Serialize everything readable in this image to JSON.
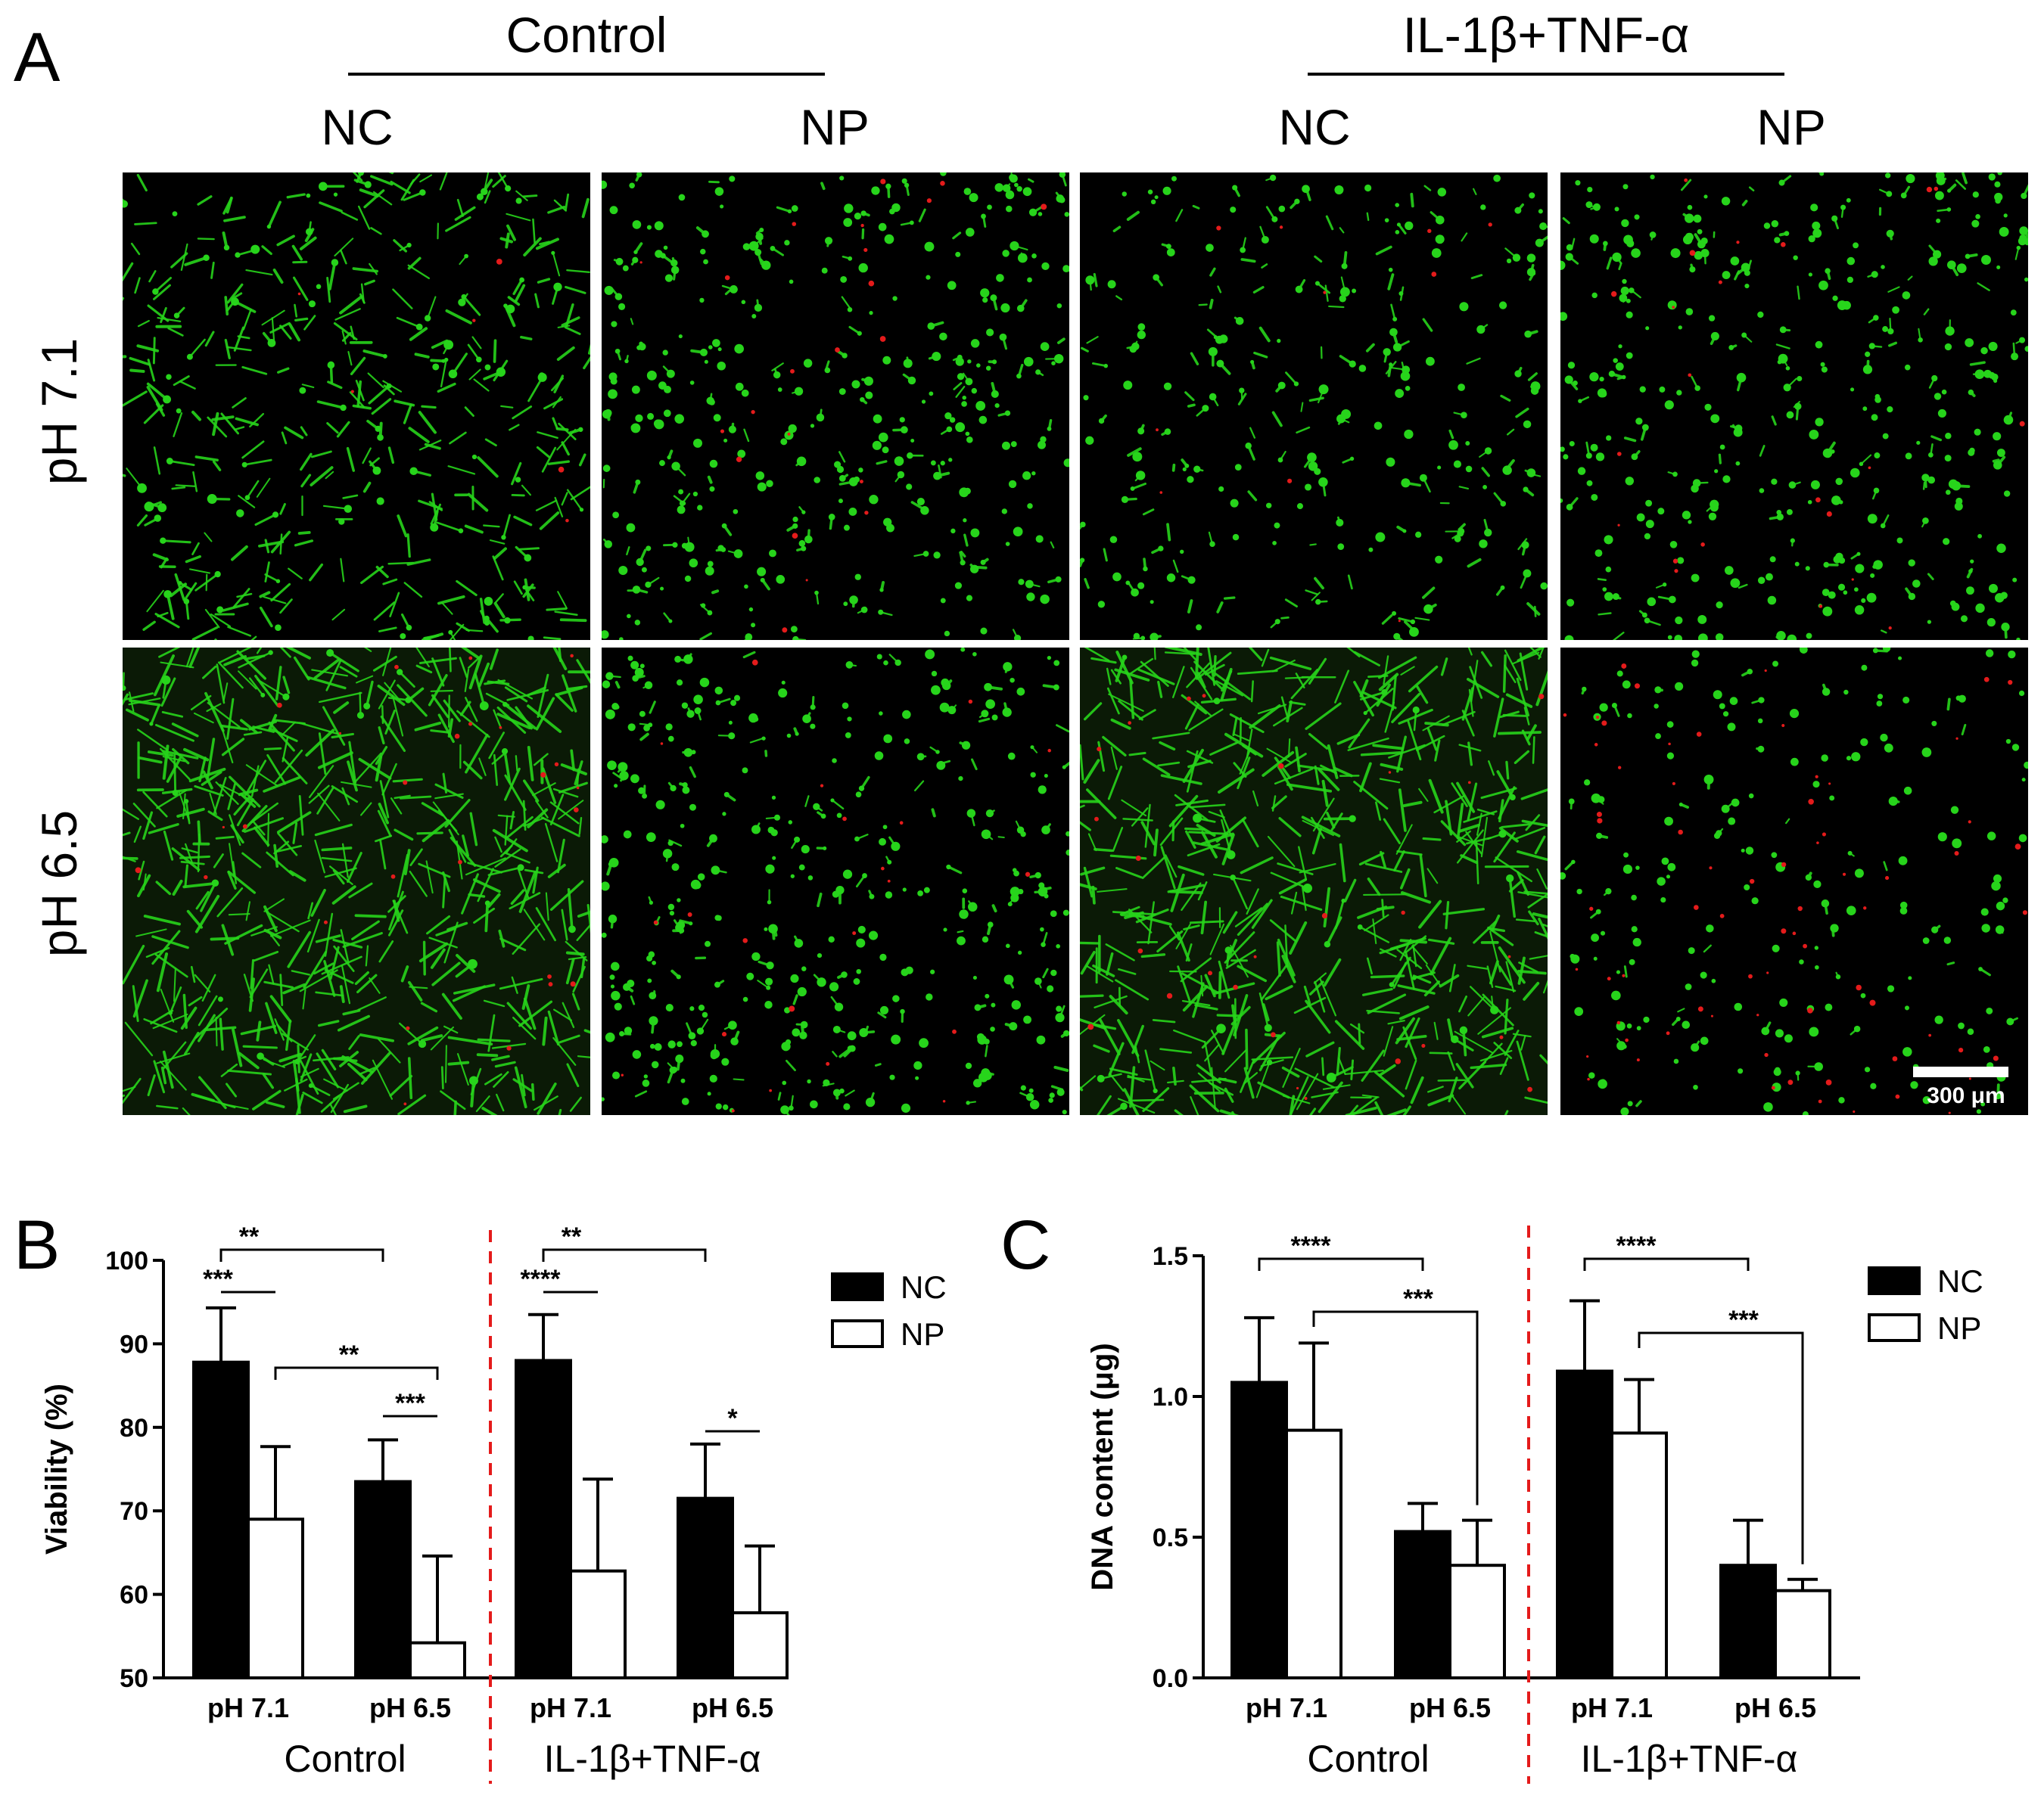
{
  "panel_a": {
    "letter": "A",
    "groups": [
      {
        "label": "Control",
        "cols": [
          "NC",
          "NP"
        ]
      },
      {
        "label": "IL-1β+TNF-α",
        "cols": [
          "NC",
          "NP"
        ]
      }
    ],
    "rows": [
      "pH 7.1",
      "pH 6.5"
    ],
    "scale_bar": "300 μm",
    "colors": {
      "live": "#27d41b",
      "dead": "#e41b1b",
      "background": "#000000"
    }
  },
  "panel_b": {
    "letter": "B",
    "legend": [
      "NC",
      "NP"
    ],
    "groups": [
      "Control",
      "IL-1β+TNF-α"
    ]
  },
  "panel_c": {
    "letter": "C",
    "legend": [
      "NC",
      "NP"
    ],
    "groups": [
      "Control",
      "IL-1β+TNF-α"
    ]
  },
  "chart_data": [
    {
      "type": "bar",
      "panel": "B",
      "ylabel": "Viability (%)",
      "ylim": [
        50,
        100
      ],
      "yticks": [
        50,
        60,
        70,
        80,
        90,
        100
      ],
      "categories": [
        "pH 7.1",
        "pH 6.5",
        "pH 7.1",
        "pH 6.5"
      ],
      "groups": [
        "Control",
        "IL-1β+TNF-α"
      ],
      "series": [
        {
          "name": "NC",
          "values": [
            87.8,
            73.5,
            88.0,
            71.5
          ],
          "errors": [
            6.5,
            5.0,
            5.5,
            6.5
          ]
        },
        {
          "name": "NP",
          "values": [
            69.0,
            54.2,
            62.8,
            57.8
          ],
          "errors": [
            8.7,
            10.4,
            11.0,
            8.0
          ]
        }
      ],
      "significance": [
        {
          "label": "***",
          "from": "Control pH 7.1 NC",
          "to": "Control pH 7.1 NP"
        },
        {
          "label": "**",
          "from": "Control pH 7.1 NC",
          "to": "Control pH 6.5 NC"
        },
        {
          "label": "**",
          "from": "Control pH 7.1 NP",
          "to": "Control pH 6.5 NP"
        },
        {
          "label": "***",
          "from": "Control pH 6.5 NC",
          "to": "Control pH 6.5 NP"
        },
        {
          "label": "****",
          "from": "IL-1β+TNF-α pH 7.1 NC",
          "to": "IL-1β+TNF-α pH 7.1 NP"
        },
        {
          "label": "**",
          "from": "IL-1β+TNF-α pH 7.1 NC",
          "to": "IL-1β+TNF-α pH 6.5 NC"
        },
        {
          "label": "*",
          "from": "IL-1β+TNF-α pH 6.5 NC",
          "to": "IL-1β+TNF-α pH 6.5 NP"
        }
      ],
      "legend_position": "right"
    },
    {
      "type": "bar",
      "panel": "C",
      "ylabel": "DNA content (μg)",
      "ylim": [
        0,
        1.5
      ],
      "yticks": [
        "0.0",
        "0.5",
        "1.0",
        "1.5"
      ],
      "categories": [
        "pH 7.1",
        "pH 6.5",
        "pH 7.1",
        "pH 6.5"
      ],
      "groups": [
        "Control",
        "IL-1β+TNF-α"
      ],
      "series": [
        {
          "name": "NC",
          "values": [
            1.05,
            0.52,
            1.09,
            0.4
          ],
          "errors": [
            0.23,
            0.1,
            0.25,
            0.16
          ]
        },
        {
          "name": "NP",
          "values": [
            0.88,
            0.4,
            0.87,
            0.31
          ],
          "errors": [
            0.31,
            0.16,
            0.19,
            0.04
          ]
        }
      ],
      "significance": [
        {
          "label": "****",
          "from": "Control pH 7.1 NC",
          "to": "Control pH 6.5 NC"
        },
        {
          "label": "***",
          "from": "Control pH 7.1 NP",
          "to": "Control pH 6.5 NP"
        },
        {
          "label": "****",
          "from": "IL-1β+TNF-α pH 7.1 NC",
          "to": "IL-1β+TNF-α pH 6.5 NC"
        },
        {
          "label": "***",
          "from": "IL-1β+TNF-α pH 7.1 NP",
          "to": "IL-1β+TNF-α pH 6.5 NP"
        }
      ],
      "legend_position": "right"
    }
  ]
}
